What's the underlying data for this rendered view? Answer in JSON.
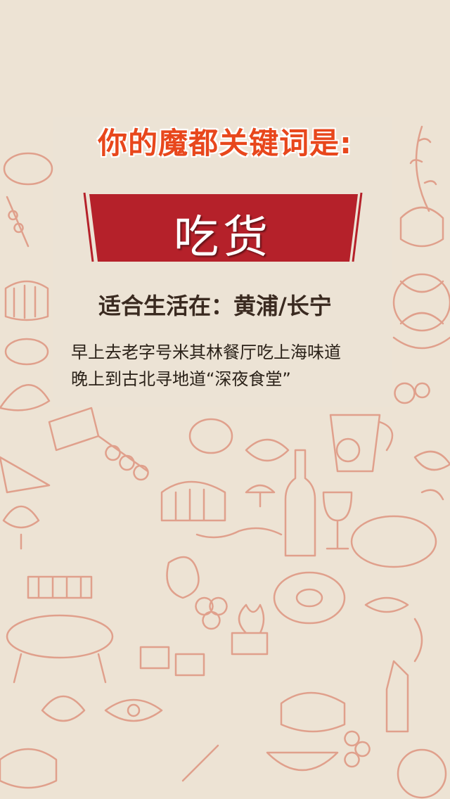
{
  "headline": "你的魔都关键词是:",
  "keyword": "吃货",
  "live_in": "适合生活在：黄浦/长宁",
  "description": [
    "早上去老字号米其林餐厅吃上海味道",
    "晚上到古北寻地道“深夜食堂”"
  ],
  "colors": {
    "background": "#ede3d4",
    "doodle_stroke": "#e0a08c",
    "headline": "#e8471c",
    "banner": "#b5212a"
  }
}
